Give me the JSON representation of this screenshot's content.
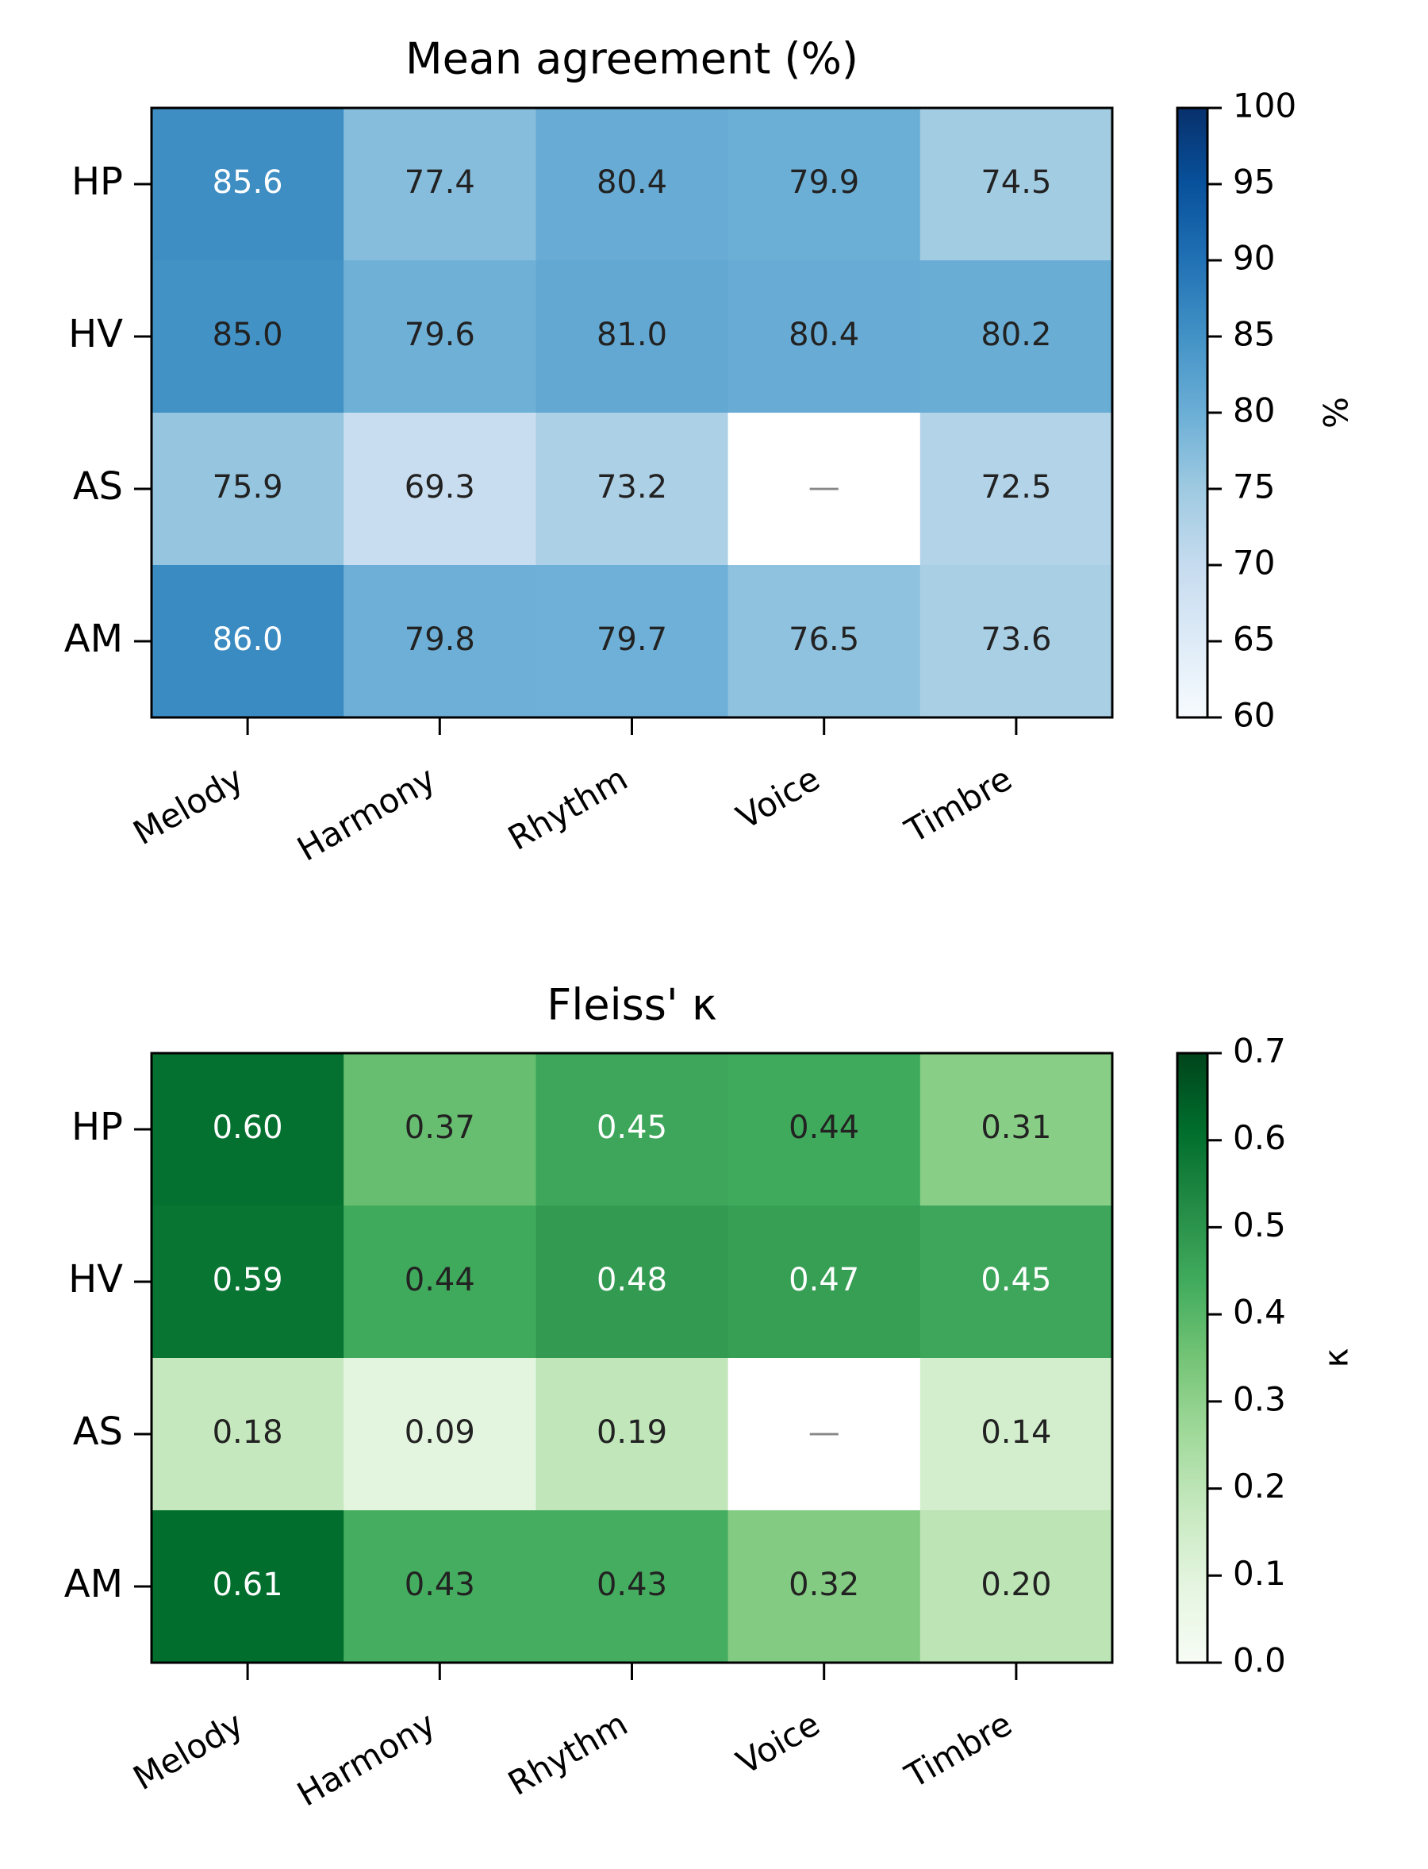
{
  "chart_data": [
    {
      "type": "heatmap",
      "title": "Mean agreement (%)",
      "rows": [
        "HP",
        "HV",
        "AS",
        "AM"
      ],
      "columns": [
        "Melody",
        "Harmony",
        "Rhythm",
        "Voice",
        "Timbre"
      ],
      "values": [
        [
          85.6,
          77.4,
          80.4,
          79.9,
          74.5
        ],
        [
          85.0,
          79.6,
          81.0,
          80.4,
          80.2
        ],
        [
          75.9,
          69.3,
          73.2,
          null,
          72.5
        ],
        [
          86.0,
          79.8,
          79.7,
          76.5,
          73.6
        ]
      ],
      "labels": [
        [
          "85.6",
          "77.4",
          "80.4",
          "79.9",
          "74.5"
        ],
        [
          "85.0",
          "79.6",
          "81.0",
          "80.4",
          "80.2"
        ],
        [
          "75.9",
          "69.3",
          "73.2",
          "—",
          "72.5"
        ],
        [
          "86.0",
          "79.8",
          "79.7",
          "76.5",
          "73.6"
        ]
      ],
      "colormap": "Blues",
      "vmin": 60,
      "vmax": 100,
      "colorbar_label": "%",
      "colorbar_ticks": [
        60,
        65,
        70,
        75,
        80,
        85,
        90,
        95,
        100
      ]
    },
    {
      "type": "heatmap",
      "title": "Fleiss' κ",
      "rows": [
        "HP",
        "HV",
        "AS",
        "AM"
      ],
      "columns": [
        "Melody",
        "Harmony",
        "Rhythm",
        "Voice",
        "Timbre"
      ],
      "values": [
        [
          0.6,
          0.37,
          0.45,
          0.44,
          0.31
        ],
        [
          0.59,
          0.44,
          0.48,
          0.47,
          0.45
        ],
        [
          0.18,
          0.09,
          0.19,
          null,
          0.14
        ],
        [
          0.61,
          0.43,
          0.43,
          0.32,
          0.2
        ]
      ],
      "labels": [
        [
          "0.60",
          "0.37",
          "0.45",
          "0.44",
          "0.31"
        ],
        [
          "0.59",
          "0.44",
          "0.48",
          "0.47",
          "0.45"
        ],
        [
          "0.18",
          "0.09",
          "0.19",
          "—",
          "0.14"
        ],
        [
          "0.61",
          "0.43",
          "0.43",
          "0.32",
          "0.20"
        ]
      ],
      "colormap": "Greens",
      "vmin": 0.0,
      "vmax": 0.7,
      "colorbar_label": "κ",
      "colorbar_ticks": [
        "0.0",
        "0.1",
        "0.2",
        "0.3",
        "0.4",
        "0.5",
        "0.6",
        "0.7"
      ]
    }
  ]
}
